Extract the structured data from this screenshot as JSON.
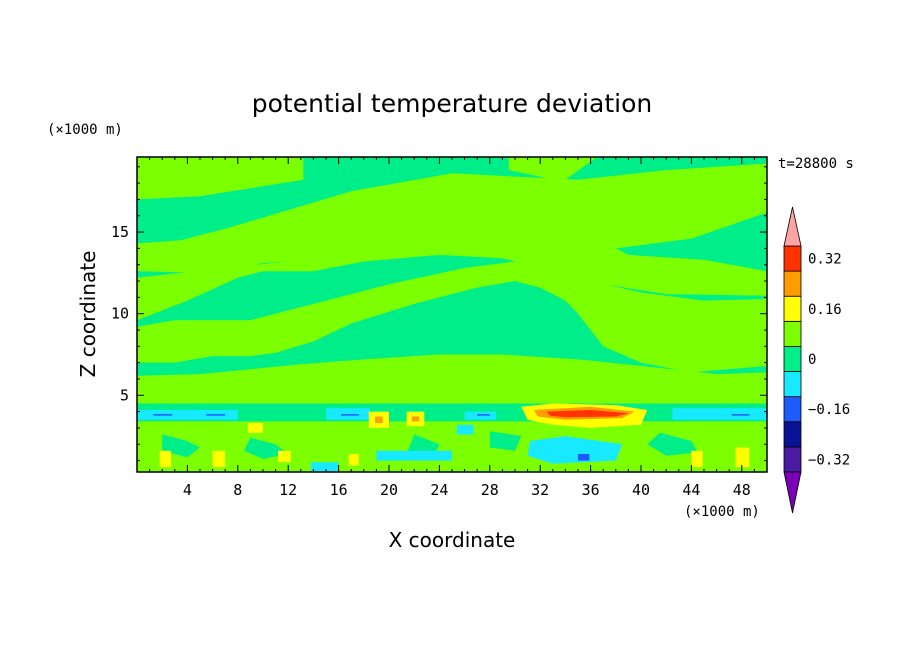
{
  "chart_data": {
    "type": "heatmap",
    "title": "potential temperature deviation",
    "xlabel": "X coordinate",
    "ylabel": "Z coordinate",
    "x_unit": "(×1000 m)",
    "y_unit": "(×1000 m)",
    "time_label": "t=28800 s",
    "xlim": [
      0,
      50
    ],
    "ylim": [
      0.3,
      19.6
    ],
    "x_ticks": [
      4,
      8,
      12,
      16,
      20,
      24,
      28,
      32,
      36,
      40,
      44,
      48
    ],
    "y_ticks": [
      5,
      10,
      15
    ],
    "colorbar": {
      "levels": [
        -0.4,
        -0.32,
        -0.24,
        -0.16,
        -0.08,
        0,
        0.08,
        0.16,
        0.24,
        0.32,
        0.4
      ],
      "labeled_ticks": [
        -0.32,
        -0.16,
        0,
        0.16,
        0.32
      ],
      "colors": [
        "#7a00b8",
        "#4a1aa0",
        "#0a1296",
        "#1e5bff",
        "#17eaff",
        "#00ee8a",
        "#7cff00",
        "#ffff00",
        "#ff9c00",
        "#ff3300",
        "#ffa3a3"
      ]
    },
    "background_class": "#00ee8a",
    "regions": [
      {
        "cls": "#7cff00",
        "pts": [
          [
            0,
            19.6
          ],
          [
            13.2,
            19.6
          ],
          [
            13.2,
            18.2
          ],
          [
            5,
            17.2
          ],
          [
            0,
            17
          ]
        ]
      },
      {
        "cls": "#7cff00",
        "pts": [
          [
            29.5,
            19.6
          ],
          [
            36.5,
            19.6
          ],
          [
            33.8,
            18.1
          ],
          [
            29.5,
            18.8
          ]
        ]
      },
      {
        "cls": "#7cff00",
        "pts": [
          [
            0,
            14.3
          ],
          [
            3.5,
            14.5
          ],
          [
            7,
            15.2
          ],
          [
            17,
            17.5
          ],
          [
            25,
            18.6
          ],
          [
            35,
            18.2
          ],
          [
            42,
            18.8
          ],
          [
            50,
            19.2
          ],
          [
            50,
            16.2
          ],
          [
            44,
            14.6
          ],
          [
            35,
            13.7
          ],
          [
            29,
            13.4
          ],
          [
            25,
            13.6
          ],
          [
            18,
            13.5
          ],
          [
            10,
            13.1
          ],
          [
            6,
            12.5
          ],
          [
            0,
            12.6
          ]
        ]
      },
      {
        "cls": "#7cff00",
        "pts": [
          [
            10.5,
            14.6
          ],
          [
            15,
            14.6
          ],
          [
            15,
            14.3
          ],
          [
            10.5,
            14.3
          ]
        ]
      },
      {
        "cls": "#7cff00",
        "pts": [
          [
            0,
            9.6
          ],
          [
            4,
            10.8
          ],
          [
            8,
            12.2
          ],
          [
            10,
            12.6
          ],
          [
            14,
            12.6
          ],
          [
            18,
            13.2
          ],
          [
            24,
            13.6
          ],
          [
            29,
            13.4
          ],
          [
            33,
            12.6
          ],
          [
            37,
            11.8
          ],
          [
            42,
            11.2
          ],
          [
            50,
            11.1
          ],
          [
            50,
            12.1
          ],
          [
            50,
            12.6
          ],
          [
            45,
            13.3
          ],
          [
            39,
            13.6
          ],
          [
            38,
            14
          ],
          [
            36,
            14.5
          ],
          [
            29,
            14.5
          ],
          [
            24,
            14
          ],
          [
            17,
            13.6
          ],
          [
            12,
            13.2
          ],
          [
            8,
            12.9
          ],
          [
            0,
            12.2
          ]
        ]
      },
      {
        "cls": "#7cff00",
        "pts": [
          [
            0,
            9.2
          ],
          [
            3,
            9.6
          ],
          [
            6,
            9.6
          ],
          [
            9,
            9.6
          ],
          [
            12,
            10.2
          ],
          [
            16,
            11
          ],
          [
            20,
            11.8
          ],
          [
            26,
            12.8
          ],
          [
            30,
            13.2
          ],
          [
            33,
            12.7
          ],
          [
            36,
            12
          ],
          [
            40,
            11.3
          ],
          [
            45,
            10.8
          ],
          [
            50,
            10.9
          ],
          [
            50,
            6.8
          ],
          [
            44,
            6.4
          ],
          [
            40,
            7
          ],
          [
            37,
            8
          ],
          [
            35,
            10
          ],
          [
            34,
            10.8
          ],
          [
            32,
            11.6
          ],
          [
            30,
            12
          ],
          [
            27,
            11.6
          ],
          [
            22,
            10.6
          ],
          [
            17,
            9.4
          ],
          [
            14,
            8.3
          ],
          [
            11,
            7.6
          ],
          [
            9,
            7.4
          ],
          [
            6,
            7.4
          ],
          [
            3,
            7
          ],
          [
            0,
            7
          ]
        ]
      },
      {
        "cls": "#7cff00",
        "pts": [
          [
            0,
            6.2
          ],
          [
            5,
            6.3
          ],
          [
            9,
            6.6
          ],
          [
            13,
            6.9
          ],
          [
            18,
            7.2
          ],
          [
            24,
            7.5
          ],
          [
            29,
            7.5
          ],
          [
            35,
            7.2
          ],
          [
            40,
            6.8
          ],
          [
            46,
            6.3
          ],
          [
            50,
            6.4
          ],
          [
            50,
            4.5
          ],
          [
            0,
            4.5
          ]
        ]
      },
      {
        "cls": "#7cff00",
        "pts": [
          [
            0,
            3.4
          ],
          [
            50,
            3.4
          ],
          [
            50,
            0.3
          ],
          [
            0,
            0.3
          ]
        ]
      },
      {
        "cls": "#00ee8a",
        "pts": [
          [
            2,
            2.6
          ],
          [
            4,
            2.2
          ],
          [
            5,
            1.8
          ],
          [
            4,
            1.2
          ],
          [
            2,
            1.6
          ]
        ]
      },
      {
        "cls": "#00ee8a",
        "pts": [
          [
            9,
            2.4
          ],
          [
            11,
            2
          ],
          [
            12,
            1.4
          ],
          [
            10,
            1.1
          ],
          [
            8.5,
            1.6
          ]
        ]
      },
      {
        "cls": "#00ee8a",
        "pts": [
          [
            22,
            2.6
          ],
          [
            24,
            2
          ],
          [
            23.5,
            1.2
          ],
          [
            21.5,
            1.6
          ]
        ]
      },
      {
        "cls": "#00ee8a",
        "pts": [
          [
            41.5,
            2.7
          ],
          [
            44,
            2.2
          ],
          [
            44.5,
            1.5
          ],
          [
            42,
            1.3
          ],
          [
            40.5,
            2
          ]
        ]
      },
      {
        "cls": "#00ee8a",
        "pts": [
          [
            28,
            2.8
          ],
          [
            30.5,
            2.5
          ],
          [
            30,
            1.6
          ],
          [
            28,
            1.8
          ]
        ]
      },
      {
        "cls": "#17eaff",
        "pts": [
          [
            0,
            4.1
          ],
          [
            8,
            4.1
          ],
          [
            8,
            3.5
          ],
          [
            0,
            3.5
          ]
        ]
      },
      {
        "cls": "#17eaff",
        "pts": [
          [
            15,
            4.2
          ],
          [
            18.5,
            4.2
          ],
          [
            18.5,
            3.5
          ],
          [
            15,
            3.5
          ]
        ]
      },
      {
        "cls": "#17eaff",
        "pts": [
          [
            26,
            4
          ],
          [
            28.5,
            4
          ],
          [
            28.5,
            3.5
          ],
          [
            26,
            3.5
          ]
        ]
      },
      {
        "cls": "#17eaff",
        "pts": [
          [
            42.5,
            4.2
          ],
          [
            50,
            4.2
          ],
          [
            50,
            3.5
          ],
          [
            42.5,
            3.5
          ]
        ]
      },
      {
        "cls": "#17eaff",
        "pts": [
          [
            31.2,
            2.2
          ],
          [
            34,
            2.5
          ],
          [
            38.5,
            2
          ],
          [
            38,
            1
          ],
          [
            33,
            0.8
          ],
          [
            31,
            1.3
          ]
        ]
      },
      {
        "cls": "#17eaff",
        "pts": [
          [
            13.8,
            0.9
          ],
          [
            16,
            0.9
          ],
          [
            16,
            0.3
          ],
          [
            13.8,
            0.3
          ]
        ]
      },
      {
        "cls": "#17eaff",
        "pts": [
          [
            19,
            1.6
          ],
          [
            25,
            1.6
          ],
          [
            25,
            1
          ],
          [
            19,
            1
          ]
        ]
      },
      {
        "cls": "#17eaff",
        "pts": [
          [
            25.4,
            3.2
          ],
          [
            26.7,
            3.2
          ],
          [
            26.7,
            2.6
          ],
          [
            25.4,
            2.6
          ]
        ]
      },
      {
        "cls": "#1e5bff",
        "pts": [
          [
            35,
            1.4
          ],
          [
            35.9,
            1.4
          ],
          [
            35.9,
            1
          ],
          [
            35,
            1
          ]
        ]
      },
      {
        "cls": "#ffff00",
        "pts": [
          [
            30.5,
            4.3
          ],
          [
            33,
            4.5
          ],
          [
            38,
            4.4
          ],
          [
            40.5,
            4.1
          ],
          [
            40,
            3.2
          ],
          [
            36,
            3
          ],
          [
            33,
            3.2
          ],
          [
            31,
            3.5
          ]
        ]
      },
      {
        "cls": "#ff9c00",
        "pts": [
          [
            31.5,
            4.1
          ],
          [
            36,
            4.3
          ],
          [
            39.5,
            4
          ],
          [
            38.5,
            3.6
          ],
          [
            34,
            3.5
          ],
          [
            31.8,
            3.7
          ]
        ]
      },
      {
        "cls": "#ff3300",
        "pts": [
          [
            32.5,
            4
          ],
          [
            36,
            4.1
          ],
          [
            39,
            3.9
          ],
          [
            38,
            3.7
          ],
          [
            34,
            3.65
          ],
          [
            32.8,
            3.75
          ]
        ]
      },
      {
        "cls": "#ffff00",
        "pts": [
          [
            1.8,
            1.6
          ],
          [
            2.7,
            1.6
          ],
          [
            2.7,
            0.6
          ],
          [
            1.8,
            0.6
          ]
        ]
      },
      {
        "cls": "#ffff00",
        "pts": [
          [
            6,
            1.6
          ],
          [
            7,
            1.6
          ],
          [
            7,
            0.6
          ],
          [
            6,
            0.6
          ]
        ]
      },
      {
        "cls": "#ffff00",
        "pts": [
          [
            11.2,
            1.6
          ],
          [
            12.2,
            1.6
          ],
          [
            12.2,
            0.9
          ],
          [
            11.2,
            0.9
          ]
        ]
      },
      {
        "cls": "#ffff00",
        "pts": [
          [
            16.8,
            1.4
          ],
          [
            17.6,
            1.4
          ],
          [
            17.6,
            0.7
          ],
          [
            16.8,
            0.7
          ]
        ]
      },
      {
        "cls": "#ffff00",
        "pts": [
          [
            44,
            1.6
          ],
          [
            44.9,
            1.6
          ],
          [
            44.9,
            0.6
          ],
          [
            44,
            0.6
          ]
        ]
      },
      {
        "cls": "#ffff00",
        "pts": [
          [
            47.5,
            1.8
          ],
          [
            48.6,
            1.8
          ],
          [
            48.6,
            0.6
          ],
          [
            47.5,
            0.6
          ]
        ]
      },
      {
        "cls": "#ffff00",
        "pts": [
          [
            8.8,
            3.3
          ],
          [
            10,
            3.3
          ],
          [
            10,
            2.7
          ],
          [
            8.8,
            2.7
          ]
        ]
      },
      {
        "cls": "#ffff00",
        "pts": [
          [
            18.4,
            4
          ],
          [
            20,
            4
          ],
          [
            20,
            3
          ],
          [
            18.4,
            3
          ]
        ]
      },
      {
        "cls": "#ffff00",
        "pts": [
          [
            21.4,
            4
          ],
          [
            22.8,
            4
          ],
          [
            22.8,
            3.1
          ],
          [
            21.4,
            3.1
          ]
        ]
      },
      {
        "cls": "#ff9c00",
        "pts": [
          [
            18.9,
            3.7
          ],
          [
            19.5,
            3.7
          ],
          [
            19.5,
            3.3
          ],
          [
            18.9,
            3.3
          ]
        ]
      },
      {
        "cls": "#ff9c00",
        "pts": [
          [
            21.8,
            3.7
          ],
          [
            22.4,
            3.7
          ],
          [
            22.4,
            3.4
          ],
          [
            21.8,
            3.4
          ]
        ]
      }
    ],
    "dashes": [
      {
        "cls": "#1e5bff",
        "x": [
          1.3,
          2.8
        ],
        "y": 3.8
      },
      {
        "cls": "#1e5bff",
        "x": [
          5.5,
          7
        ],
        "y": 3.8
      },
      {
        "cls": "#1e5bff",
        "x": [
          16.2,
          17.6
        ],
        "y": 3.8
      },
      {
        "cls": "#1e5bff",
        "x": [
          27,
          28
        ],
        "y": 3.8
      },
      {
        "cls": "#1e5bff",
        "x": [
          47.2,
          48.6
        ],
        "y": 3.8
      }
    ]
  }
}
